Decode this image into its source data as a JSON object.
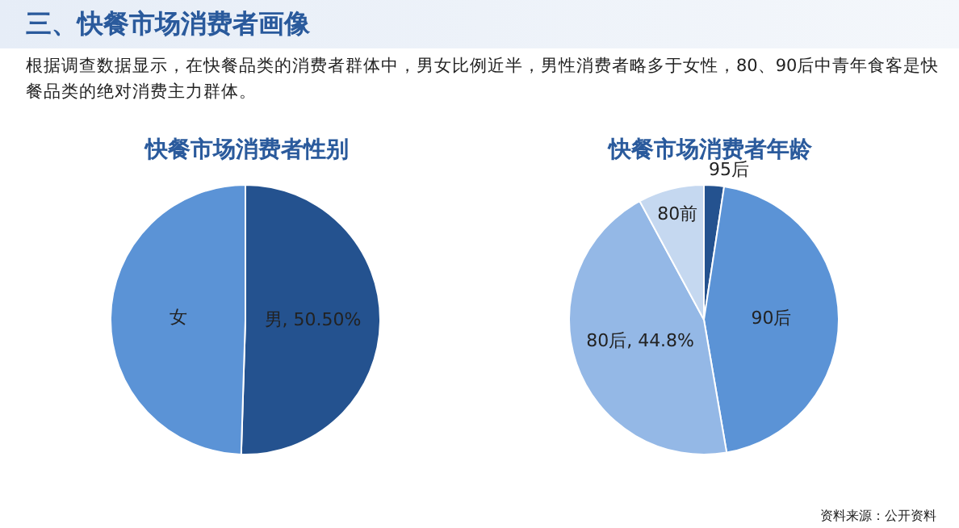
{
  "chart_data": [
    {
      "type": "other",
      "title": "三、快餐市场消费者画像",
      "subtitle": "根据调查数据显示，在快餐品类的消费者群体中，男女比例近半，男性消费者略多于女性，80、90后中青年食客是快餐品类的绝对消费主力群体。"
    },
    {
      "type": "pie",
      "title": "快餐市场消费者性别",
      "categories": [
        "男",
        "女"
      ],
      "values": [
        50.5,
        49.5
      ],
      "colors": [
        "#24528f",
        "#5b93d6"
      ],
      "value_labels": [
        "50.50%",
        null
      ],
      "legend": false
    },
    {
      "type": "pie",
      "title": "快餐市场消费者年龄",
      "categories": [
        "95后",
        "90后",
        "80后",
        "80前"
      ],
      "values": [
        2.4,
        44.9,
        44.8,
        7.9
      ],
      "colors": [
        "#24528f",
        "#5b93d6",
        "#94b8e6",
        "#c5d8f0"
      ],
      "value_labels": [
        null,
        null,
        "44.8%",
        null
      ],
      "legend": false,
      "annotations": [
        "资料来源：公开资料"
      ]
    }
  ]
}
